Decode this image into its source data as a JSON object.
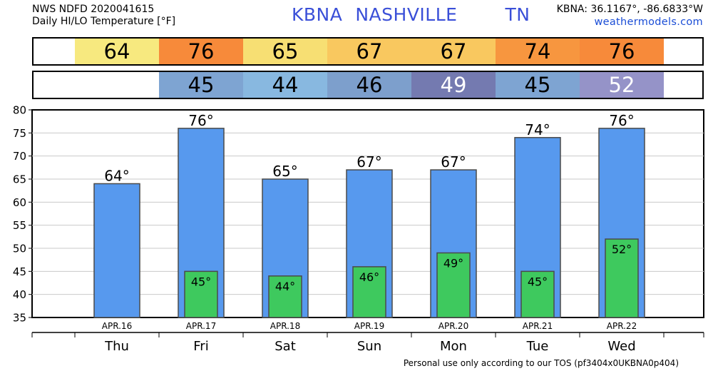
{
  "header": {
    "line1": "NWS NDFD 2020041615",
    "line2": "Daily HI/LO Temperature [°F]",
    "station_id": "KBNA",
    "station_name": "NASHVILLE",
    "state": "TN",
    "coords": "KBNA: 36.1167°, -86.6833°W",
    "site": "weathermodels.com"
  },
  "hi_strip": [
    {
      "value": "64",
      "color": "#f7e97f"
    },
    {
      "value": "76",
      "color": "#f78a3a"
    },
    {
      "value": "65",
      "color": "#f7df73"
    },
    {
      "value": "67",
      "color": "#f9c85f"
    },
    {
      "value": "67",
      "color": "#f9c85f"
    },
    {
      "value": "74",
      "color": "#f7963f"
    },
    {
      "value": "76",
      "color": "#f78a3a"
    }
  ],
  "lo_strip": [
    {
      "value": "",
      "color": "#ffffff"
    },
    {
      "value": "45",
      "color": "#7ea4d2"
    },
    {
      "value": "44",
      "color": "#88b8e0"
    },
    {
      "value": "46",
      "color": "#7d9fcc"
    },
    {
      "value": "49",
      "color": "#747ab0",
      "light_text": true
    },
    {
      "value": "45",
      "color": "#7ea4d2"
    },
    {
      "value": "52",
      "color": "#9593c8",
      "light_text": true
    }
  ],
  "chart_data": {
    "type": "bar",
    "categories": [
      "Thu",
      "Fri",
      "Sat",
      "Sun",
      "Mon",
      "Tue",
      "Wed"
    ],
    "dates": [
      "APR.16",
      "APR.17",
      "APR.18",
      "APR.19",
      "APR.20",
      "APR.21",
      "APR.22"
    ],
    "series": [
      {
        "name": "HI",
        "values": [
          64,
          76,
          65,
          67,
          67,
          74,
          76
        ],
        "color": "#5799ee"
      },
      {
        "name": "LO",
        "values": [
          null,
          45,
          44,
          46,
          49,
          45,
          52
        ],
        "color": "#3ec95e"
      }
    ],
    "hi_labels": [
      "64°",
      "76°",
      "65°",
      "67°",
      "67°",
      "74°",
      "76°"
    ],
    "lo_labels": [
      "",
      "45°",
      "44°",
      "46°",
      "49°",
      "45°",
      "52°"
    ],
    "ylim": [
      35,
      80
    ],
    "yticks": [
      "35",
      "40",
      "45",
      "50",
      "55",
      "60",
      "65",
      "70",
      "75",
      "80"
    ],
    "grid": true,
    "legend": "none"
  },
  "footer": "Personal use only according to our TOS (pf3404x0UKBNA0p404)"
}
